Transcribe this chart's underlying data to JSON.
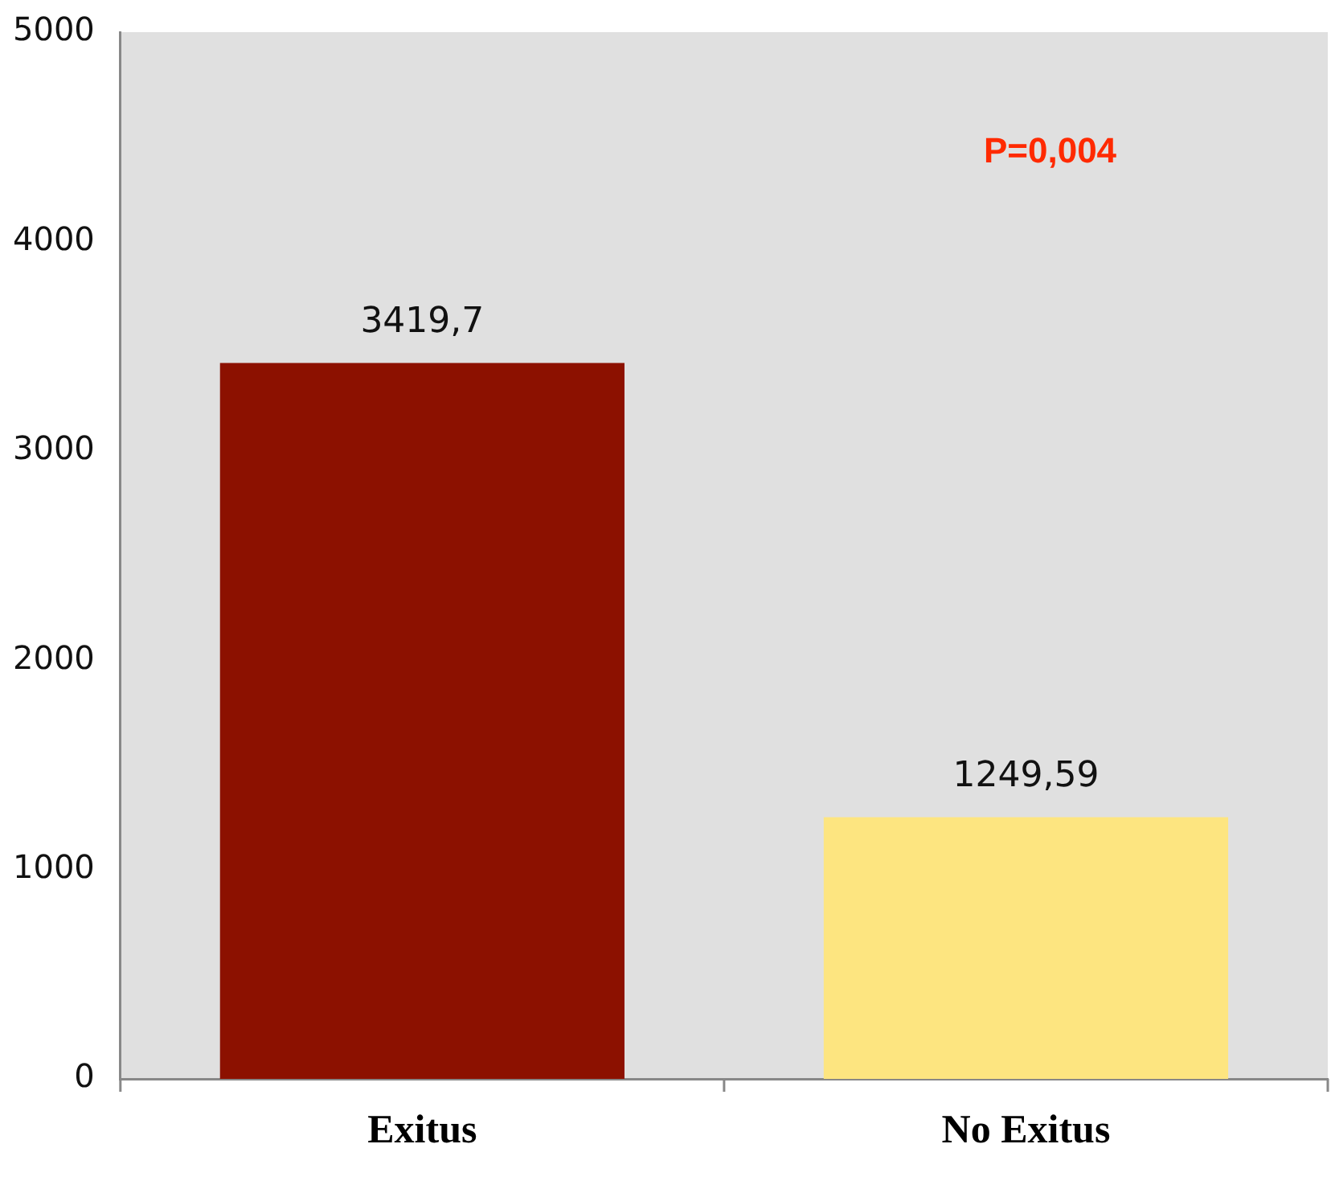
{
  "chart_data": {
    "type": "bar",
    "categories": [
      "Exitus",
      "No Exitus"
    ],
    "values": [
      3419.7,
      1249.59
    ],
    "colors": [
      "#8c1100",
      "#fde580"
    ],
    "value_labels": [
      "3419,7",
      "1249,59"
    ],
    "ylim": [
      0,
      5000
    ],
    "yticks": [
      0,
      1000,
      2000,
      3000,
      4000,
      5000
    ],
    "grid": false,
    "legend": false,
    "annotations": [
      "P=0,004"
    ]
  }
}
